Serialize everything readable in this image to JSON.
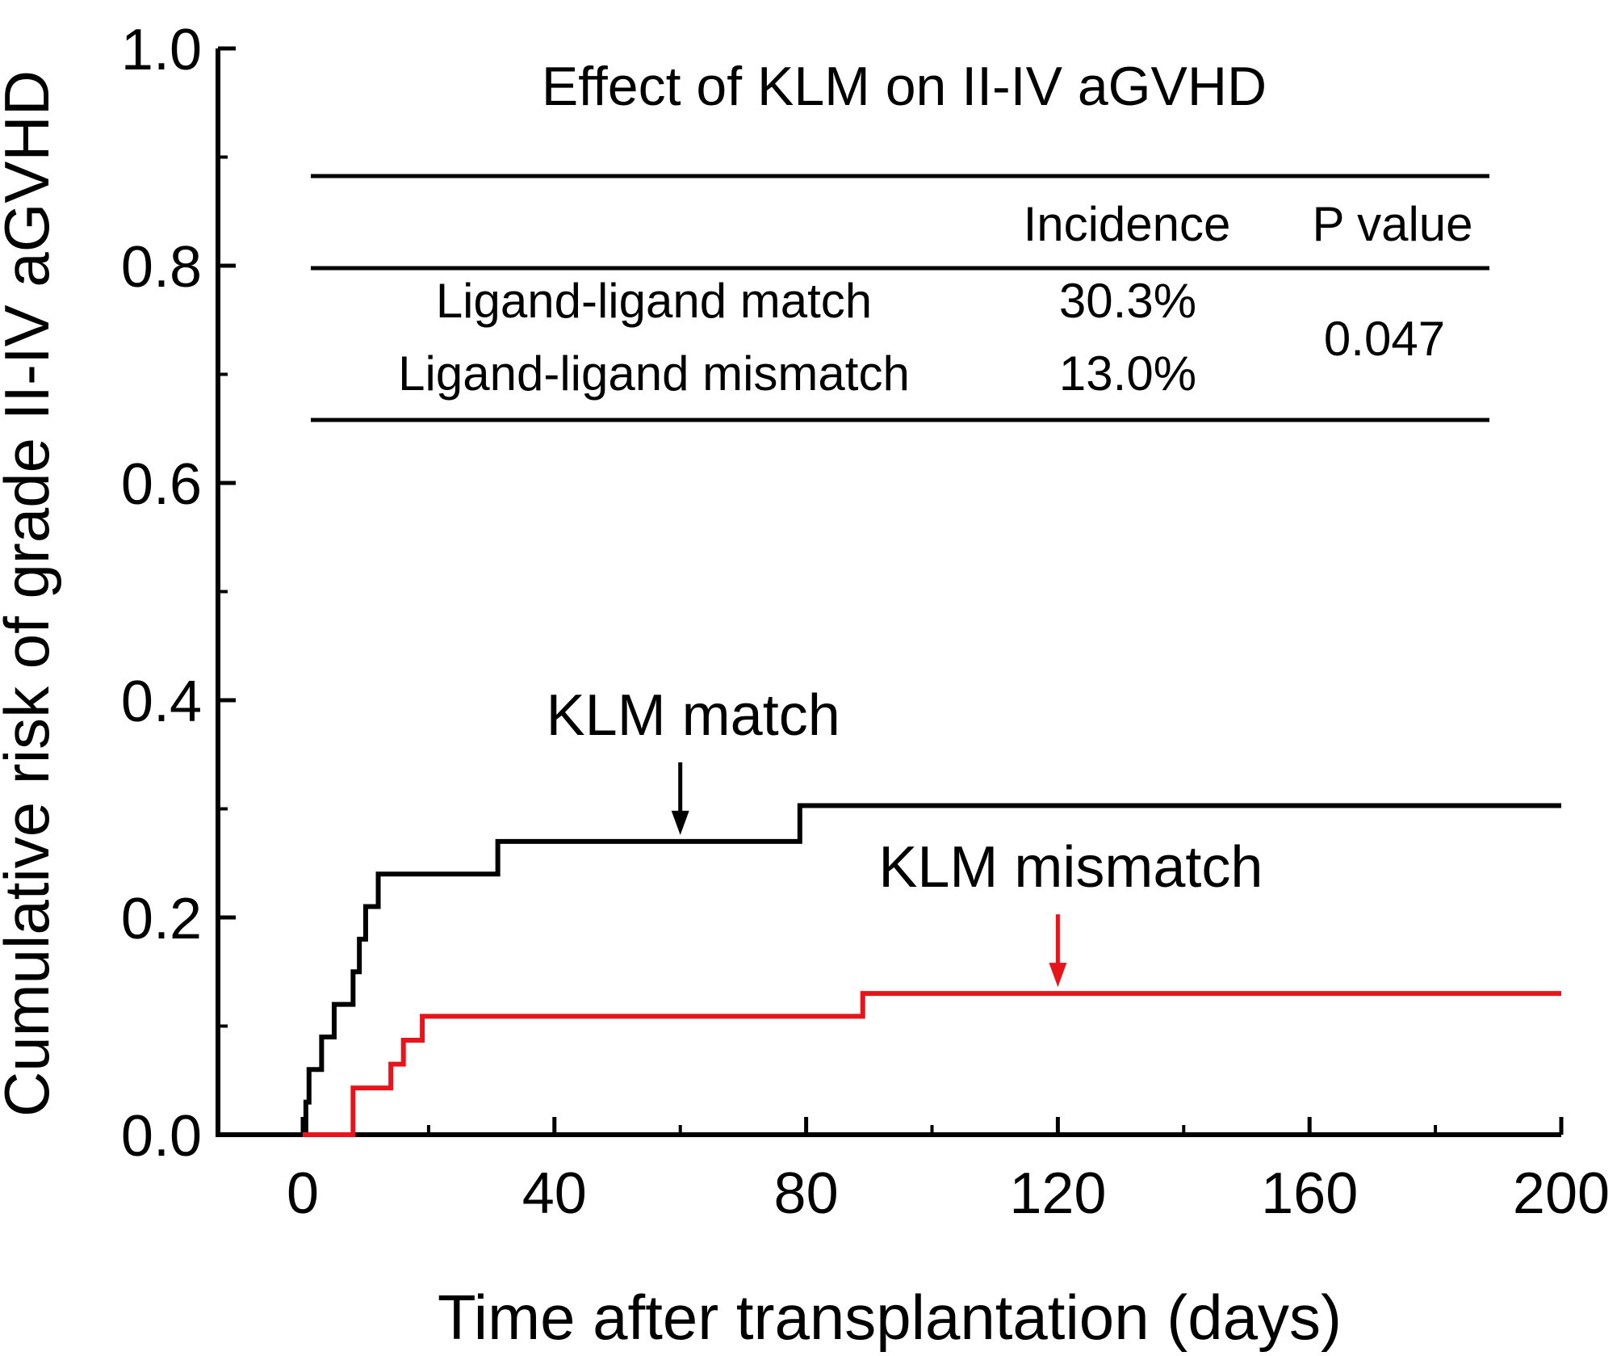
{
  "chart_data": {
    "type": "line",
    "subtype": "step",
    "title": "Effect of KLM on II-IV aGVHD",
    "xlabel": "Time after transplantation (days)",
    "ylabel": "Cumulative risk of grade II-IV aGVHD",
    "xlim": [
      -15,
      200
    ],
    "ylim": [
      0,
      1.0
    ],
    "x_ticks": [
      0,
      40,
      80,
      120,
      160,
      200
    ],
    "x_tick_labels": [
      "0",
      "40",
      "80",
      "120",
      "160",
      "200"
    ],
    "y_ticks": [
      0.0,
      0.2,
      0.4,
      0.6,
      0.8,
      1.0
    ],
    "y_tick_labels": [
      "0.0",
      "0.2",
      "0.4",
      "0.6",
      "0.8",
      "1.0"
    ],
    "series": [
      {
        "name": "KLM match",
        "color": "#000000",
        "x": [
          0,
          0.5,
          1,
          3,
          4,
          5,
          7,
          8,
          9,
          10,
          11,
          12,
          31,
          79,
          200
        ],
        "y": [
          0.0,
          0.03,
          0.06,
          0.09,
          0.09,
          0.12,
          0.12,
          0.15,
          0.18,
          0.21,
          0.21,
          0.24,
          0.27,
          0.303,
          0.303
        ]
      },
      {
        "name": "KLM mismatch",
        "color": "#e8141b",
        "x": [
          0,
          7,
          8,
          14,
          15,
          16,
          18,
          19,
          89,
          200
        ],
        "y": [
          0.0,
          0.0,
          0.043,
          0.065,
          0.065,
          0.087,
          0.087,
          0.109,
          0.13,
          0.13
        ]
      }
    ],
    "annotations": [
      {
        "text": "KLM match",
        "color": "#000000",
        "arrow_x": 60,
        "arrow_y": 0.27
      },
      {
        "text": "KLM mismatch",
        "color": "#e8141b",
        "arrow_x": 120,
        "arrow_y": 0.13
      }
    ],
    "inset_table": {
      "headers": [
        "",
        "Incidence",
        "P value"
      ],
      "rows": [
        {
          "group": "Ligand-ligand match",
          "incidence": "30.3%"
        },
        {
          "group": "Ligand-ligand mismatch",
          "incidence": "13.0%"
        }
      ],
      "p_value": "0.047"
    },
    "grid": false,
    "legend": "none"
  }
}
